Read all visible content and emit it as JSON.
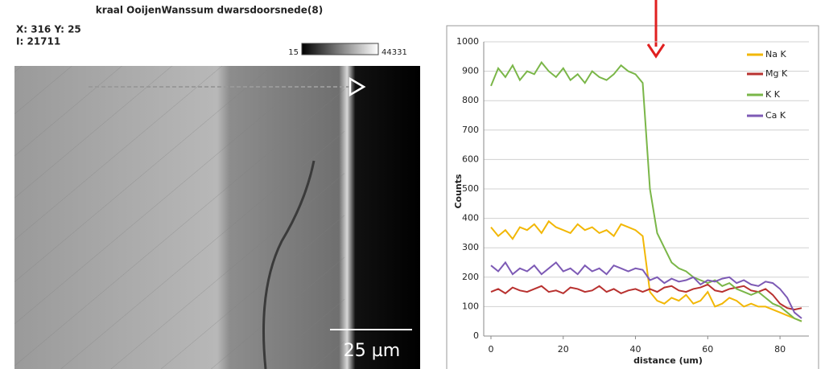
{
  "image_panel": {
    "title": "kraal OoijenWanssum dwarsdoorsnede(8)",
    "coords": "X: 316 Y: 25",
    "intensity": "I: 21711",
    "colorbar_min": "15",
    "colorbar_max": "44331",
    "scale_bar": "25 µm"
  },
  "chart_data": {
    "type": "line",
    "x_label": "distance (um)",
    "y_label": "Counts",
    "x": [
      0,
      2,
      4,
      6,
      8,
      10,
      12,
      14,
      16,
      18,
      20,
      22,
      24,
      26,
      28,
      30,
      32,
      34,
      36,
      38,
      40,
      42,
      44,
      46,
      48,
      50,
      52,
      54,
      56,
      58,
      60,
      62,
      64,
      66,
      68,
      70,
      72,
      74,
      76,
      78,
      80,
      82,
      84,
      86
    ],
    "series": [
      {
        "name": "Na K",
        "color": "#f2b705",
        "values": [
          370,
          340,
          360,
          330,
          370,
          360,
          380,
          350,
          390,
          370,
          360,
          350,
          380,
          360,
          370,
          350,
          360,
          340,
          380,
          370,
          360,
          340,
          150,
          120,
          110,
          130,
          120,
          140,
          110,
          120,
          150,
          100,
          110,
          130,
          120,
          100,
          110,
          100,
          100,
          90,
          80,
          70,
          60,
          50
        ]
      },
      {
        "name": "Mg K",
        "color": "#b8312f",
        "values": [
          150,
          160,
          145,
          165,
          155,
          150,
          160,
          170,
          150,
          155,
          145,
          165,
          160,
          150,
          155,
          170,
          150,
          160,
          145,
          155,
          160,
          150,
          160,
          150,
          165,
          170,
          155,
          150,
          160,
          165,
          175,
          155,
          150,
          160,
          165,
          170,
          155,
          150,
          160,
          140,
          110,
          95,
          90,
          95
        ]
      },
      {
        "name": "K K",
        "color": "#7ab648",
        "values": [
          850,
          910,
          880,
          920,
          870,
          900,
          890,
          930,
          900,
          880,
          910,
          870,
          890,
          860,
          900,
          880,
          870,
          890,
          920,
          900,
          890,
          860,
          500,
          350,
          300,
          250,
          230,
          220,
          200,
          190,
          180,
          190,
          170,
          180,
          160,
          150,
          140,
          150,
          130,
          110,
          100,
          80,
          60,
          50
        ]
      },
      {
        "name": "Ca K",
        "color": "#7d5ab5",
        "values": [
          240,
          220,
          250,
          210,
          230,
          220,
          240,
          210,
          230,
          250,
          220,
          230,
          210,
          240,
          220,
          230,
          210,
          240,
          230,
          220,
          230,
          225,
          190,
          200,
          180,
          195,
          185,
          190,
          200,
          175,
          190,
          185,
          195,
          200,
          180,
          190,
          175,
          170,
          185,
          180,
          160,
          130,
          80,
          60
        ]
      }
    ],
    "xlim": [
      -2,
      88
    ],
    "xticks": [
      0,
      20,
      40,
      60,
      80
    ],
    "ylim": [
      0,
      1000
    ],
    "yticks": [
      0,
      100,
      200,
      300,
      400,
      500,
      600,
      700,
      800,
      900,
      1000
    ],
    "grid": true,
    "legend": "upper right"
  }
}
